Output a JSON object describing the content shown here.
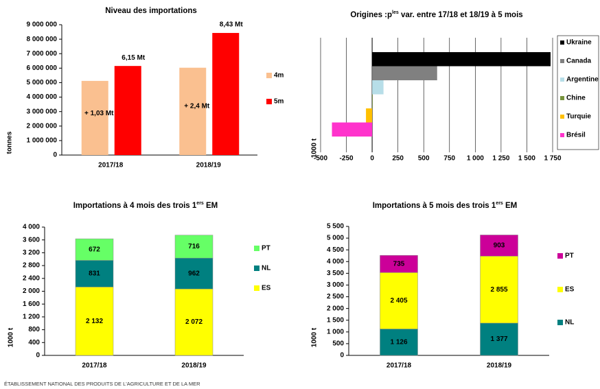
{
  "chart_data": [
    {
      "type": "bar",
      "title": "Niveau des importations",
      "ylabel": "tonnes",
      "categories": [
        "2017/18",
        "2018/19"
      ],
      "series": [
        {
          "name": "4m",
          "color": "#fac090",
          "values": [
            5120000,
            6030000
          ]
        },
        {
          "name": "5m",
          "color": "#ff0000",
          "values": [
            6150000,
            8430000
          ],
          "value_labels": [
            "6,15 Mt",
            "8,43 Mt"
          ]
        }
      ],
      "annotations": [
        "+ 1,03 Mt",
        "+ 2,4 Mt"
      ],
      "ylim": [
        0,
        9000000
      ],
      "yticks": [
        0,
        {
          "value": 1000000,
          "label": "1 000 000"
        },
        {
          "value": 2000000,
          "label": "2 000 000"
        },
        {
          "value": 3000000,
          "label": "3 000 000"
        },
        {
          "value": 4000000,
          "label": "4 000 000"
        },
        {
          "value": 5000000,
          "label": "5 000 000"
        },
        {
          "value": 6000000,
          "label": "6 000 000"
        },
        {
          "value": 7000000,
          "label": "7 000 000"
        },
        {
          "value": 8000000,
          "label": "8 000 000"
        },
        {
          "value": 9000000,
          "label": "9 000 000"
        }
      ],
      "legend": "right"
    },
    {
      "type": "barh",
      "title": [
        "Origines :p",
        "les",
        " var. entre 17/18 et 18/19 à 5 mois"
      ],
      "ylabel": "1000 t",
      "categories": [
        "Ukraine",
        "Canada",
        "Argentine",
        "Chine",
        "Turquie",
        "Brésil"
      ],
      "values": [
        1730,
        630,
        110,
        5,
        -60,
        -390
      ],
      "colors": [
        "#000000",
        "#808080",
        "#b7dee8",
        "#77933c",
        "#ffc000",
        "#ff33cc"
      ],
      "xlim": [
        -500,
        1750
      ],
      "xticks": [
        -500,
        -250,
        0,
        250,
        500,
        750,
        {
          "value": 1000,
          "label": "1 000"
        },
        {
          "value": 1250,
          "label": "1 250"
        },
        {
          "value": 1500,
          "label": "1 500"
        },
        {
          "value": 1750,
          "label": "1 750"
        }
      ],
      "grid": true,
      "legend": "right"
    },
    {
      "type": "stacked_bar",
      "title": [
        "Importations à 4 mois des trois 1",
        "ers",
        " EM"
      ],
      "ylabel": "1000 t",
      "categories": [
        "2017/18",
        "2018/19"
      ],
      "series": [
        {
          "name": "ES",
          "color": "#ffff00",
          "values": [
            2132,
            2072
          ],
          "value_labels": [
            "2 132",
            "2 072"
          ]
        },
        {
          "name": "NL",
          "color": "#008080",
          "values": [
            831,
            962
          ]
        },
        {
          "name": "PT",
          "color": "#66ff66",
          "values": [
            672,
            716
          ]
        }
      ],
      "ylim": [
        0,
        4000
      ],
      "yticks": [
        0,
        400,
        800,
        {
          "value": 1200,
          "label": "1 200"
        },
        {
          "value": 1600,
          "label": "1 600"
        },
        {
          "value": 2000,
          "label": "2 000"
        },
        {
          "value": 2400,
          "label": "2 400"
        },
        {
          "value": 2800,
          "label": "2 800"
        },
        {
          "value": 3200,
          "label": "3 200"
        },
        {
          "value": 3600,
          "label": "3 600"
        },
        {
          "value": 4000,
          "label": "4 000"
        }
      ],
      "legend": "right"
    },
    {
      "type": "stacked_bar",
      "title": [
        "Importations à 5 mois des trois 1",
        "ers",
        " EM"
      ],
      "ylabel": "1000 t",
      "categories": [
        "2017/18",
        "2018/19"
      ],
      "series": [
        {
          "name": "NL",
          "color": "#008080",
          "values": [
            1126,
            1377
          ],
          "value_labels": [
            "1 126",
            "1 377"
          ]
        },
        {
          "name": "ES",
          "color": "#ffff00",
          "values": [
            2405,
            2855
          ],
          "value_labels": [
            "2 405",
            "2 855"
          ]
        },
        {
          "name": "PT",
          "color": "#cc0099",
          "values": [
            735,
            903
          ]
        }
      ],
      "ylim": [
        0,
        5500
      ],
      "yticks": [
        0,
        500,
        {
          "value": 1000,
          "label": "1 000"
        },
        {
          "value": 1500,
          "label": "1 500"
        },
        {
          "value": 2000,
          "label": "2 000"
        },
        {
          "value": 2500,
          "label": "2 500"
        },
        {
          "value": 3000,
          "label": "3 000"
        },
        {
          "value": 3500,
          "label": "3 500"
        },
        {
          "value": 4000,
          "label": "4 000"
        },
        {
          "value": 4500,
          "label": "4 500"
        },
        {
          "value": 5000,
          "label": "5 000"
        },
        {
          "value": 5500,
          "label": "5 500"
        }
      ],
      "legend": "right"
    }
  ],
  "footer": "ÉTABLISSEMENT NATIONAL DES PRODUITS DE L'AGRICULTURE ET DE LA MER"
}
